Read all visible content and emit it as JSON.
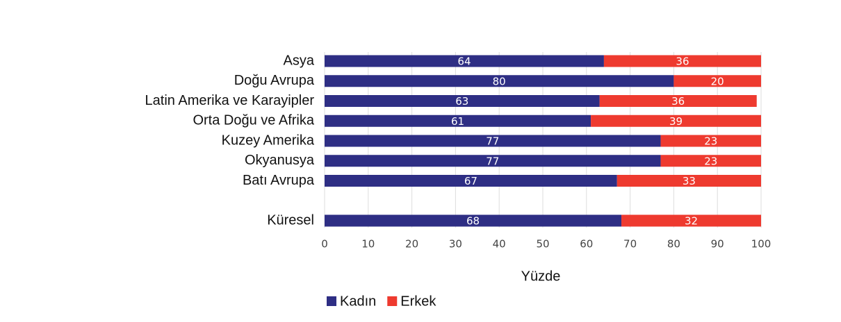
{
  "chart_data": {
    "type": "stacked_bar_horizontal",
    "categories": [
      "Asya",
      "Doğu Avrupa",
      "Latin Amerika ve Karayipler",
      "Orta Doğu ve Afrika",
      "Kuzey Amerika",
      "Okyanusya",
      "Batı Avrupa",
      null,
      "Küresel"
    ],
    "series": [
      {
        "name": "Kadın",
        "color": "#2e2e84",
        "values": [
          64,
          80,
          63,
          61,
          77,
          77,
          67,
          null,
          68
        ]
      },
      {
        "name": "Erkek",
        "color": "#ee3a2f",
        "values": [
          36,
          20,
          36,
          39,
          23,
          23,
          33,
          null,
          32
        ]
      }
    ],
    "xlabel": "Yüzde",
    "xlim": [
      0,
      100
    ],
    "xticks": [
      0,
      10,
      20,
      30,
      40,
      50,
      60,
      70,
      80,
      90,
      100
    ],
    "grid": true
  }
}
